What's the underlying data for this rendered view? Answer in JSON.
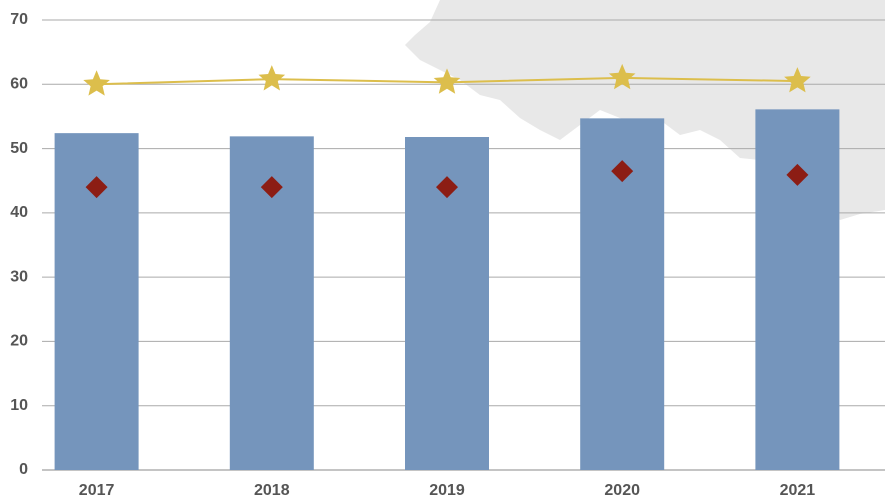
{
  "chart_data": {
    "type": "combo",
    "categories": [
      "2017",
      "2018",
      "2019",
      "2020",
      "2021"
    ],
    "series": [
      {
        "type": "bar",
        "color": "#7595bc",
        "values": [
          52.4,
          51.9,
          51.8,
          54.7,
          56.1
        ]
      },
      {
        "type": "scatter",
        "marker": "diamond",
        "color": "#8c1d14",
        "values": [
          44.0,
          44.0,
          44.0,
          46.5,
          45.9
        ]
      },
      {
        "type": "line",
        "marker": "star",
        "color": "#dcbe4c",
        "values": [
          60.0,
          60.8,
          60.3,
          61.0,
          60.5
        ]
      }
    ],
    "ylim": [
      0,
      70
    ],
    "yticks": [
      0,
      10,
      20,
      30,
      40,
      50,
      60,
      70
    ],
    "grid": true
  }
}
